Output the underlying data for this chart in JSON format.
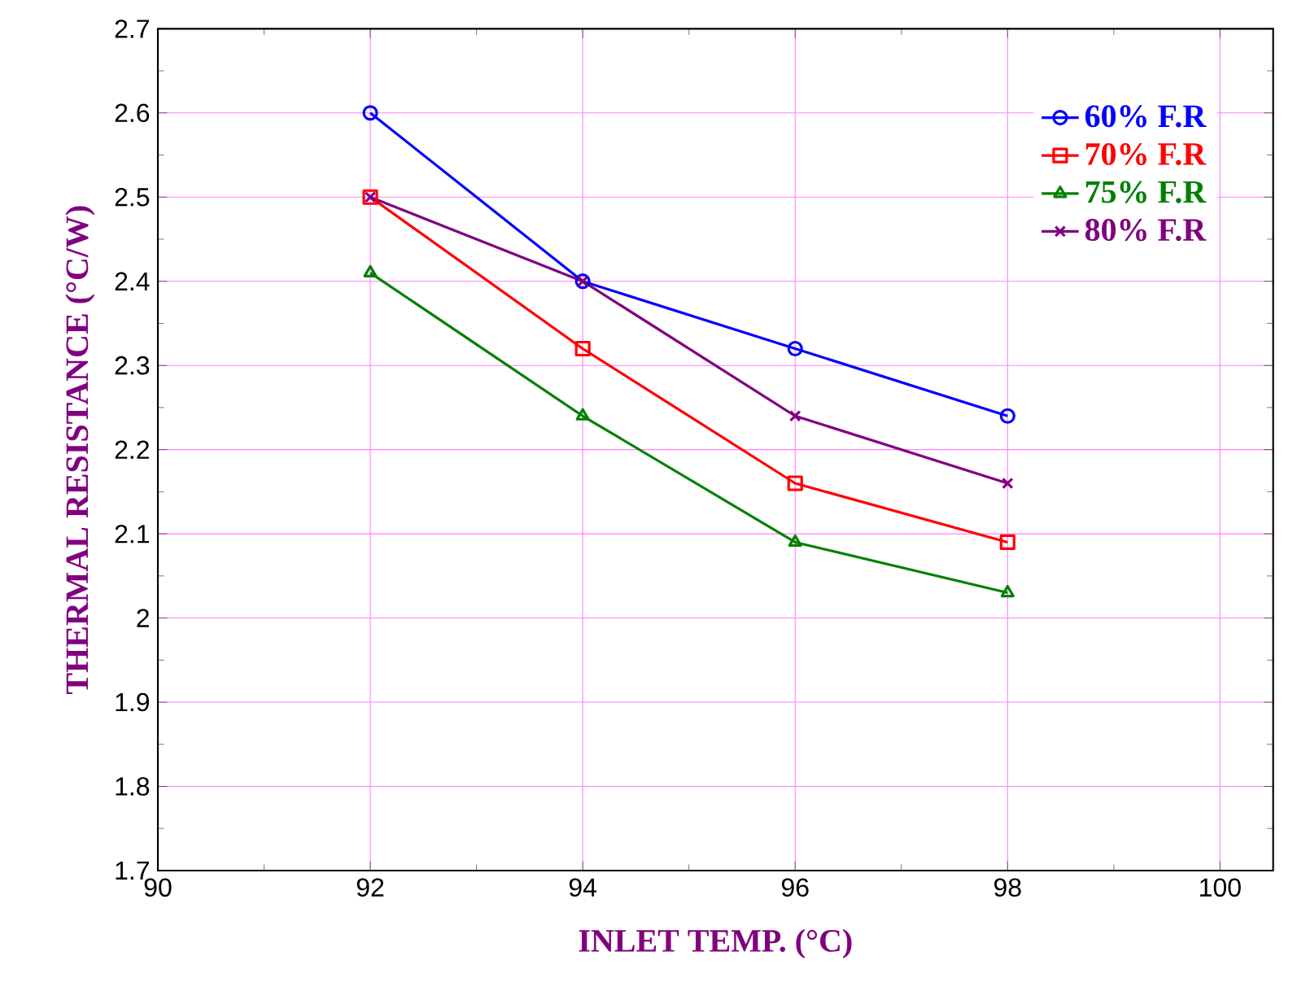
{
  "chart_data": {
    "type": "line",
    "xlabel": "INLET TEMP. (°C)",
    "ylabel": "THERMAL RESISTANCE (°C/W)",
    "x": [
      92,
      94,
      96,
      98
    ],
    "series": [
      {
        "name": "60% F.R",
        "color": "#0000ff",
        "marker": "circle",
        "values": [
          2.6,
          2.4,
          2.32,
          2.24
        ]
      },
      {
        "name": "70% F.R",
        "color": "#ff0000",
        "marker": "square",
        "values": [
          2.5,
          2.32,
          2.16,
          2.09
        ]
      },
      {
        "name": "75% F.R",
        "color": "#008000",
        "marker": "triangle",
        "values": [
          2.41,
          2.24,
          2.09,
          2.03
        ]
      },
      {
        "name": "80% F.R",
        "color": "#800080",
        "marker": "cross",
        "values": [
          2.5,
          2.4,
          2.24,
          2.16
        ]
      }
    ],
    "xlim": [
      90,
      100.5
    ],
    "ylim": [
      1.7,
      2.7
    ],
    "xticks": [
      90,
      92,
      94,
      96,
      98,
      100
    ],
    "yticks": [
      1.7,
      1.8,
      1.9,
      2,
      2.1,
      2.2,
      2.3,
      2.4,
      2.5,
      2.6,
      2.7
    ],
    "grid": true,
    "legend": "top right",
    "line_style": "solid"
  }
}
